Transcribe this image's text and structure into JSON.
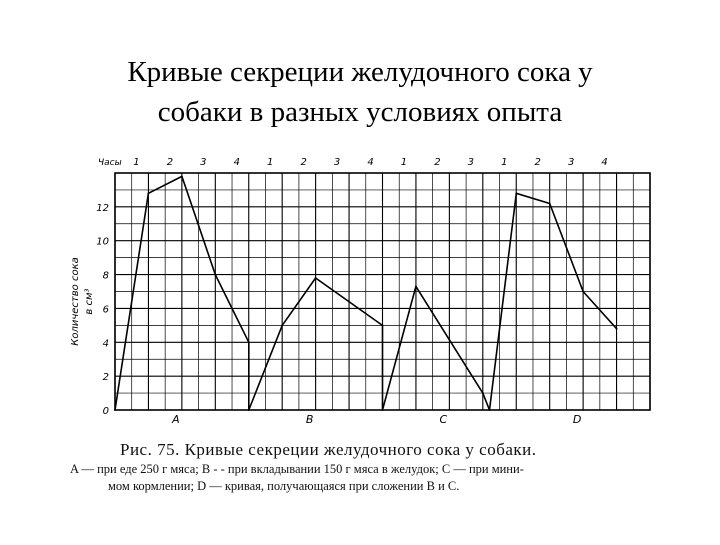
{
  "slide": {
    "title_line1": "Кривые секреции желудочного сока у",
    "title_line2": "собаки в разных условиях опыта"
  },
  "colors": {
    "ink": "#000000",
    "paper": "#ffffff"
  },
  "chart_data": {
    "type": "line",
    "hours_label": "Часы",
    "hour_ticks": [
      "1",
      "2",
      "3",
      "4",
      "1",
      "2",
      "3",
      "4",
      "1",
      "2",
      "3",
      "1",
      "2",
      "3",
      "4"
    ],
    "ylabel_line1": "Количество сока",
    "ylabel_line2": "в см³",
    "y_ticks": [
      "0",
      "2",
      "4",
      "6",
      "8",
      "10",
      "12"
    ],
    "ylim": [
      0,
      14
    ],
    "xlim": [
      0,
      16
    ],
    "grid": true,
    "section_labels": [
      {
        "label": "A",
        "x": 2
      },
      {
        "label": "B",
        "x": 6
      },
      {
        "label": "C",
        "x": 10
      },
      {
        "label": "D",
        "x": 14
      }
    ],
    "series": [
      {
        "values": [
          [
            0,
            0
          ],
          [
            1,
            12.8
          ],
          [
            2,
            13.8
          ],
          [
            3,
            8
          ],
          [
            4,
            4
          ],
          [
            4,
            0
          ]
        ]
      },
      {
        "values": [
          [
            4,
            0
          ],
          [
            5,
            5
          ],
          [
            6,
            7.8
          ],
          [
            8,
            5
          ],
          [
            8,
            0
          ]
        ]
      },
      {
        "values": [
          [
            8,
            0
          ],
          [
            9,
            7.3
          ],
          [
            11,
            1
          ],
          [
            11.2,
            0
          ]
        ]
      },
      {
        "values": [
          [
            11.2,
            0
          ],
          [
            12,
            12.8
          ],
          [
            13,
            12.2
          ],
          [
            14,
            7
          ],
          [
            15,
            4.8
          ]
        ]
      }
    ]
  },
  "caption": {
    "line1": "Рис. 75. Кривые секреции желудочного сока у собаки.",
    "line2": "A — при еде 250 г мяса; B - - при вкладывании 150 г мяса в желудок; C — при мини-",
    "line3": "мом кормлении; D — кривая, получающаяся при сложении B и C."
  }
}
